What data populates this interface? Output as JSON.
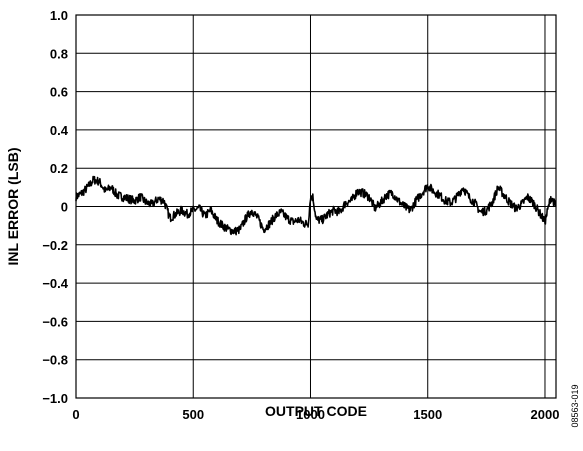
{
  "chart_data": {
    "type": "line",
    "title": "",
    "xlabel": "OUTPUT CODE",
    "ylabel": "INL ERROR (LSB)",
    "xlim": [
      0,
      2047
    ],
    "ylim": [
      -1.0,
      1.0
    ],
    "x_ticks": [
      0,
      500,
      1000,
      1500,
      2000
    ],
    "x_tick_labels": [
      "0",
      "500",
      "1000",
      "1500",
      "2000"
    ],
    "y_ticks": [
      1.0,
      0.8,
      0.6,
      0.4,
      0.2,
      0,
      -0.2,
      -0.4,
      -0.6,
      -0.8,
      -1.0
    ],
    "y_tick_labels": [
      "1.0",
      "0.8",
      "0.6",
      "0.4",
      "0.2",
      "0",
      "−0.2",
      "−0.4",
      "−0.6",
      "−0.8",
      "−1.0"
    ],
    "grid": true,
    "legend": "none",
    "line_color": "#000000",
    "series": [
      {
        "x": [
          0,
          25,
          50,
          75,
          100,
          125,
          150,
          175,
          200,
          225,
          250,
          275,
          300,
          325,
          350,
          375,
          400,
          425,
          450,
          475,
          500,
          525,
          550,
          575,
          600,
          625,
          650,
          675,
          700,
          725,
          750,
          775,
          800,
          825,
          850,
          875,
          900,
          925,
          950,
          975,
          990,
          1000,
          1010,
          1025,
          1050,
          1075,
          1100,
          1125,
          1150,
          1175,
          1200,
          1225,
          1250,
          1275,
          1300,
          1325,
          1350,
          1375,
          1400,
          1425,
          1450,
          1475,
          1500,
          1525,
          1550,
          1575,
          1600,
          1625,
          1650,
          1675,
          1700,
          1725,
          1750,
          1775,
          1800,
          1825,
          1850,
          1875,
          1900,
          1925,
          1950,
          1975,
          2000,
          2025,
          2047
        ],
        "values": [
          0.05,
          0.07,
          0.1,
          0.14,
          0.13,
          0.08,
          0.1,
          0.06,
          0.05,
          0.04,
          0.03,
          0.05,
          0.02,
          0.01,
          0.04,
          0.03,
          -0.06,
          -0.04,
          -0.02,
          -0.04,
          -0.02,
          -0.01,
          -0.05,
          -0.02,
          -0.07,
          -0.1,
          -0.12,
          -0.13,
          -0.12,
          -0.06,
          -0.02,
          -0.06,
          -0.12,
          -0.09,
          -0.05,
          -0.03,
          -0.06,
          -0.08,
          -0.07,
          -0.09,
          -0.09,
          0.05,
          0.05,
          -0.07,
          -0.07,
          -0.04,
          -0.02,
          -0.03,
          0.02,
          0.03,
          0.08,
          0.07,
          0.05,
          -0.01,
          0.02,
          0.06,
          0.07,
          0.03,
          0.0,
          -0.02,
          0.03,
          0.07,
          0.11,
          0.08,
          0.06,
          0.03,
          0.02,
          0.05,
          0.1,
          0.05,
          0.02,
          -0.03,
          -0.02,
          0.02,
          0.1,
          0.06,
          0.02,
          -0.01,
          0.01,
          0.05,
          0.02,
          -0.03,
          -0.08,
          0.05,
          0.0
        ]
      }
    ],
    "figure_id": "08563-019"
  }
}
